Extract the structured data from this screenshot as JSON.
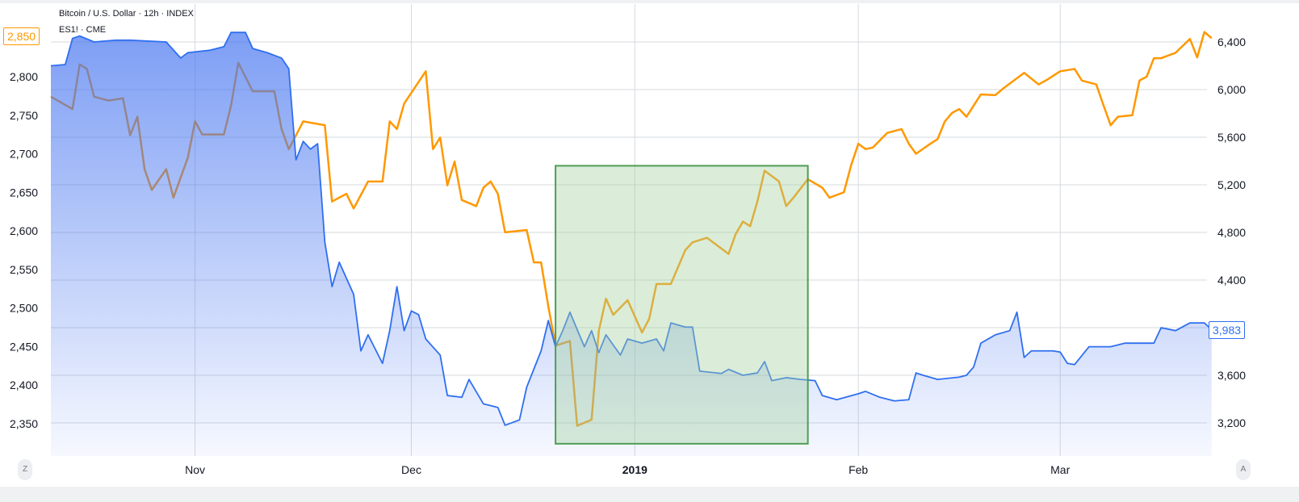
{
  "legend": {
    "line1": "Bitcoin / U.S. Dollar · 12h · INDEX",
    "line2": "ES1! · CME"
  },
  "buttons": {
    "left": "Z",
    "right": "A"
  },
  "colors": {
    "btc": "#2f6ff0",
    "es": "#ff9800",
    "box_fill": "#a5d3a0",
    "box_stroke": "#4e9d55",
    "grid": "#d6d9de"
  },
  "chart_data": {
    "type": "line",
    "x_range": [
      "2018-10-12",
      "2019-03-22"
    ],
    "x_ticks": [
      {
        "date": "2018-11-01",
        "label": "Nov"
      },
      {
        "date": "2018-12-01",
        "label": "Dec"
      },
      {
        "date": "2019-01-01",
        "label": "2019"
      },
      {
        "date": "2019-02-01",
        "label": "Feb"
      },
      {
        "date": "2019-03-01",
        "label": "Mar"
      }
    ],
    "left_axis": {
      "ticks": [
        2800,
        2750,
        2700,
        2650,
        2600,
        2550,
        2500,
        2450,
        2400,
        2350
      ],
      "labels": [
        "2,800",
        "2,750",
        "2,700",
        "2,650",
        "2,600",
        "2,550",
        "2,500",
        "2,450",
        "2,400",
        "2,350"
      ],
      "last_value": "2,850"
    },
    "right_axis": {
      "ticks": [
        6400,
        6000,
        5600,
        5200,
        4800,
        4400,
        4000,
        3600,
        3200
      ],
      "labels": [
        "6,400",
        "6,000",
        "5,600",
        "5,200",
        "4,800",
        "4,400",
        "",
        "3,600",
        "3,200"
      ],
      "last_value": "3,983"
    },
    "grid": true,
    "series": [
      {
        "name": "Bitcoin / U.S. Dollar",
        "axis": "right",
        "style": "area",
        "color": "#2f6ff0",
        "points": [
          [
            "2018-10-12",
            6200
          ],
          [
            "2018-10-14",
            6210
          ],
          [
            "2018-10-15",
            6430
          ],
          [
            "2018-10-16",
            6450
          ],
          [
            "2018-10-18",
            6400
          ],
          [
            "2018-10-21",
            6415
          ],
          [
            "2018-10-23",
            6415
          ],
          [
            "2018-10-28",
            6400
          ],
          [
            "2018-10-30",
            6265
          ],
          [
            "2018-10-31",
            6310
          ],
          [
            "2018-11-03",
            6330
          ],
          [
            "2018-11-05",
            6360
          ],
          [
            "2018-11-06",
            6480
          ],
          [
            "2018-11-08",
            6480
          ],
          [
            "2018-11-09",
            6345
          ],
          [
            "2018-11-11",
            6310
          ],
          [
            "2018-11-13",
            6265
          ],
          [
            "2018-11-14",
            6175
          ],
          [
            "2018-11-15",
            5410
          ],
          [
            "2018-11-16",
            5565
          ],
          [
            "2018-11-17",
            5500
          ],
          [
            "2018-11-18",
            5545
          ],
          [
            "2018-11-19",
            4720
          ],
          [
            "2018-11-20",
            4345
          ],
          [
            "2018-11-21",
            4550
          ],
          [
            "2018-11-23",
            4280
          ],
          [
            "2018-11-24",
            3805
          ],
          [
            "2018-11-25",
            3940
          ],
          [
            "2018-11-27",
            3700
          ],
          [
            "2018-11-28",
            3975
          ],
          [
            "2018-11-29",
            4345
          ],
          [
            "2018-11-30",
            3975
          ],
          [
            "2018-12-01",
            4140
          ],
          [
            "2018-12-02",
            4110
          ],
          [
            "2018-12-03",
            3905
          ],
          [
            "2018-12-05",
            3770
          ],
          [
            "2018-12-06",
            3430
          ],
          [
            "2018-12-08",
            3415
          ],
          [
            "2018-12-09",
            3565
          ],
          [
            "2018-12-11",
            3360
          ],
          [
            "2018-12-13",
            3330
          ],
          [
            "2018-12-14",
            3180
          ],
          [
            "2018-12-16",
            3225
          ],
          [
            "2018-12-17",
            3500
          ],
          [
            "2018-12-19",
            3805
          ],
          [
            "2018-12-20",
            4060
          ],
          [
            "2018-12-21",
            3840
          ],
          [
            "2018-12-22",
            3975
          ],
          [
            "2018-12-23",
            4130
          ],
          [
            "2018-12-25",
            3840
          ],
          [
            "2018-12-26",
            3975
          ],
          [
            "2018-12-27",
            3790
          ],
          [
            "2018-12-28",
            3940
          ],
          [
            "2018-12-30",
            3770
          ],
          [
            "2018-12-31",
            3905
          ],
          [
            "2019-01-02",
            3870
          ],
          [
            "2019-01-04",
            3905
          ],
          [
            "2019-01-05",
            3805
          ],
          [
            "2019-01-06",
            4040
          ],
          [
            "2019-01-08",
            4005
          ],
          [
            "2019-01-09",
            4005
          ],
          [
            "2019-01-10",
            3635
          ],
          [
            "2019-01-13",
            3615
          ],
          [
            "2019-01-14",
            3650
          ],
          [
            "2019-01-16",
            3600
          ],
          [
            "2019-01-18",
            3620
          ],
          [
            "2019-01-19",
            3715
          ],
          [
            "2019-01-20",
            3555
          ],
          [
            "2019-01-22",
            3580
          ],
          [
            "2019-01-24",
            3565
          ],
          [
            "2019-01-26",
            3555
          ],
          [
            "2019-01-27",
            3430
          ],
          [
            "2019-01-29",
            3395
          ],
          [
            "2019-02-01",
            3445
          ],
          [
            "2019-02-02",
            3465
          ],
          [
            "2019-02-04",
            3415
          ],
          [
            "2019-02-06",
            3385
          ],
          [
            "2019-02-08",
            3395
          ],
          [
            "2019-02-09",
            3620
          ],
          [
            "2019-02-10",
            3600
          ],
          [
            "2019-02-12",
            3565
          ],
          [
            "2019-02-15",
            3585
          ],
          [
            "2019-02-16",
            3600
          ],
          [
            "2019-02-17",
            3670
          ],
          [
            "2019-02-18",
            3870
          ],
          [
            "2019-02-20",
            3940
          ],
          [
            "2019-02-22",
            3975
          ],
          [
            "2019-02-23",
            4130
          ],
          [
            "2019-02-24",
            3750
          ],
          [
            "2019-02-25",
            3805
          ],
          [
            "2019-02-28",
            3805
          ],
          [
            "2019-03-01",
            3795
          ],
          [
            "2019-03-02",
            3700
          ],
          [
            "2019-03-03",
            3690
          ],
          [
            "2019-03-05",
            3840
          ],
          [
            "2019-03-08",
            3840
          ],
          [
            "2019-03-10",
            3870
          ],
          [
            "2019-03-12",
            3870
          ],
          [
            "2019-03-14",
            3870
          ],
          [
            "2019-03-15",
            4000
          ],
          [
            "2019-03-17",
            3975
          ],
          [
            "2019-03-19",
            4040
          ],
          [
            "2019-03-21",
            4040
          ],
          [
            "2019-03-22",
            3983
          ]
        ]
      },
      {
        "name": "ES1! · CME",
        "axis": "left",
        "style": "line",
        "color": "#ff9800",
        "points": [
          [
            "2018-10-12",
            2774
          ],
          [
            "2018-10-15",
            2758
          ],
          [
            "2018-10-16",
            2816
          ],
          [
            "2018-10-17",
            2810
          ],
          [
            "2018-10-18",
            2774
          ],
          [
            "2018-10-20",
            2769
          ],
          [
            "2018-10-22",
            2772
          ],
          [
            "2018-10-23",
            2724
          ],
          [
            "2018-10-24",
            2748
          ],
          [
            "2018-10-25",
            2680
          ],
          [
            "2018-10-26",
            2653
          ],
          [
            "2018-10-28",
            2680
          ],
          [
            "2018-10-29",
            2643
          ],
          [
            "2018-10-31",
            2695
          ],
          [
            "2018-11-01",
            2742
          ],
          [
            "2018-11-02",
            2725
          ],
          [
            "2018-11-05",
            2725
          ],
          [
            "2018-11-06",
            2763
          ],
          [
            "2018-11-07",
            2818
          ],
          [
            "2018-11-09",
            2781
          ],
          [
            "2018-11-12",
            2781
          ],
          [
            "2018-11-13",
            2732
          ],
          [
            "2018-11-14",
            2706
          ],
          [
            "2018-11-16",
            2742
          ],
          [
            "2018-11-19",
            2737
          ],
          [
            "2018-11-20",
            2638
          ],
          [
            "2018-11-22",
            2648
          ],
          [
            "2018-11-23",
            2629
          ],
          [
            "2018-11-25",
            2664
          ],
          [
            "2018-11-27",
            2664
          ],
          [
            "2018-11-28",
            2742
          ],
          [
            "2018-11-29",
            2732
          ],
          [
            "2018-11-30",
            2765
          ],
          [
            "2018-12-03",
            2807
          ],
          [
            "2018-12-04",
            2706
          ],
          [
            "2018-12-05",
            2721
          ],
          [
            "2018-12-06",
            2659
          ],
          [
            "2018-12-07",
            2690
          ],
          [
            "2018-12-08",
            2640
          ],
          [
            "2018-12-10",
            2632
          ],
          [
            "2018-12-11",
            2656
          ],
          [
            "2018-12-12",
            2664
          ],
          [
            "2018-12-13",
            2648
          ],
          [
            "2018-12-14",
            2598
          ],
          [
            "2018-12-17",
            2601
          ],
          [
            "2018-12-18",
            2559
          ],
          [
            "2018-12-19",
            2559
          ],
          [
            "2018-12-20",
            2502
          ],
          [
            "2018-12-21",
            2451
          ],
          [
            "2018-12-23",
            2457
          ],
          [
            "2018-12-24",
            2347
          ],
          [
            "2018-12-26",
            2355
          ],
          [
            "2018-12-27",
            2470
          ],
          [
            "2018-12-28",
            2512
          ],
          [
            "2018-12-29",
            2491
          ],
          [
            "2018-12-31",
            2510
          ],
          [
            "2019-01-02",
            2468
          ],
          [
            "2019-01-03",
            2486
          ],
          [
            "2019-01-04",
            2531
          ],
          [
            "2019-01-06",
            2531
          ],
          [
            "2019-01-08",
            2575
          ],
          [
            "2019-01-09",
            2585
          ],
          [
            "2019-01-11",
            2591
          ],
          [
            "2019-01-14",
            2570
          ],
          [
            "2019-01-15",
            2596
          ],
          [
            "2019-01-16",
            2612
          ],
          [
            "2019-01-17",
            2606
          ],
          [
            "2019-01-18",
            2638
          ],
          [
            "2019-01-19",
            2678
          ],
          [
            "2019-01-21",
            2664
          ],
          [
            "2019-01-22",
            2632
          ],
          [
            "2019-01-23",
            2643
          ],
          [
            "2019-01-25",
            2667
          ],
          [
            "2019-01-27",
            2656
          ],
          [
            "2019-01-28",
            2643
          ],
          [
            "2019-01-30",
            2650
          ],
          [
            "2019-01-31",
            2685
          ],
          [
            "2019-02-01",
            2713
          ],
          [
            "2019-02-02",
            2706
          ],
          [
            "2019-02-03",
            2708
          ],
          [
            "2019-02-05",
            2727
          ],
          [
            "2019-02-07",
            2732
          ],
          [
            "2019-02-08",
            2713
          ],
          [
            "2019-02-09",
            2700
          ],
          [
            "2019-02-11",
            2713
          ],
          [
            "2019-02-12",
            2719
          ],
          [
            "2019-02-13",
            2742
          ],
          [
            "2019-02-14",
            2753
          ],
          [
            "2019-02-15",
            2758
          ],
          [
            "2019-02-16",
            2748
          ],
          [
            "2019-02-18",
            2777
          ],
          [
            "2019-02-20",
            2776
          ],
          [
            "2019-02-21",
            2784
          ],
          [
            "2019-02-24",
            2805
          ],
          [
            "2019-02-26",
            2790
          ],
          [
            "2019-02-27",
            2795
          ],
          [
            "2019-03-01",
            2807
          ],
          [
            "2019-03-03",
            2810
          ],
          [
            "2019-03-04",
            2795
          ],
          [
            "2019-03-06",
            2790
          ],
          [
            "2019-03-07",
            2763
          ],
          [
            "2019-03-08",
            2737
          ],
          [
            "2019-03-09",
            2748
          ],
          [
            "2019-03-11",
            2750
          ],
          [
            "2019-03-12",
            2795
          ],
          [
            "2019-03-13",
            2800
          ],
          [
            "2019-03-14",
            2824
          ],
          [
            "2019-03-15",
            2824
          ],
          [
            "2019-03-17",
            2831
          ],
          [
            "2019-03-19",
            2849
          ],
          [
            "2019-03-20",
            2825
          ],
          [
            "2019-03-21",
            2858
          ],
          [
            "2019-03-22",
            2850
          ]
        ]
      }
    ],
    "annotations": [
      {
        "type": "rectangle",
        "x_start": "2018-12-21",
        "x_end": "2019-01-25",
        "axis": "right",
        "y_start": 3025,
        "y_end": 5360,
        "color": "#a5d3a0"
      }
    ]
  }
}
